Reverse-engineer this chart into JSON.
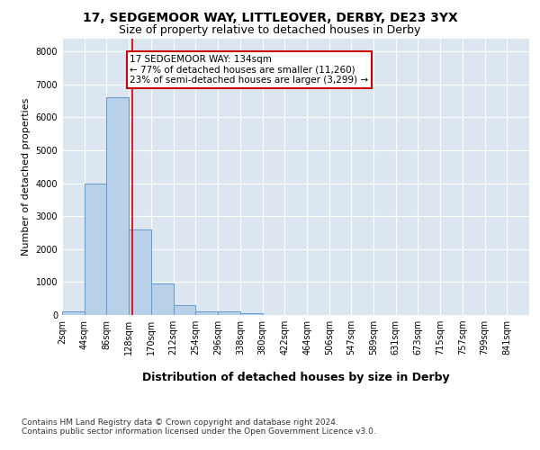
{
  "title1": "17, SEDGEMOOR WAY, LITTLEOVER, DERBY, DE23 3YX",
  "title2": "Size of property relative to detached houses in Derby",
  "xlabel": "Distribution of detached houses by size in Derby",
  "ylabel": "Number of detached properties",
  "bar_edges": [
    2,
    44,
    86,
    128,
    170,
    212,
    254,
    296,
    338,
    380,
    422,
    464,
    506,
    547,
    589,
    631,
    673,
    715,
    757,
    799,
    841
  ],
  "bar_heights": [
    100,
    4000,
    6600,
    2600,
    950,
    300,
    110,
    100,
    55,
    0,
    0,
    0,
    0,
    0,
    0,
    0,
    0,
    0,
    0,
    0,
    0
  ],
  "bar_color": "#b8d0e8",
  "bar_edgecolor": "#6699cc",
  "bar_linewidth": 0.7,
  "vline_x": 134,
  "vline_color": "#cc0000",
  "vline_linewidth": 1.2,
  "annotation_text": "17 SEDGEMOOR WAY: 134sqm\n← 77% of detached houses are smaller (11,260)\n23% of semi-detached houses are larger (3,299) →",
  "annotation_box_edgecolor": "#cc0000",
  "annotation_box_facecolor": "#ffffff",
  "ylim": [
    0,
    8400
  ],
  "yticks": [
    0,
    1000,
    2000,
    3000,
    4000,
    5000,
    6000,
    7000,
    8000
  ],
  "plot_bg_color": "#dce6f0",
  "footer": "Contains HM Land Registry data © Crown copyright and database right 2024.\nContains public sector information licensed under the Open Government Licence v3.0.",
  "title1_fontsize": 10,
  "title2_fontsize": 9,
  "xlabel_fontsize": 9,
  "ylabel_fontsize": 8,
  "tick_fontsize": 7,
  "annotation_fontsize": 7.5,
  "footer_fontsize": 6.5
}
